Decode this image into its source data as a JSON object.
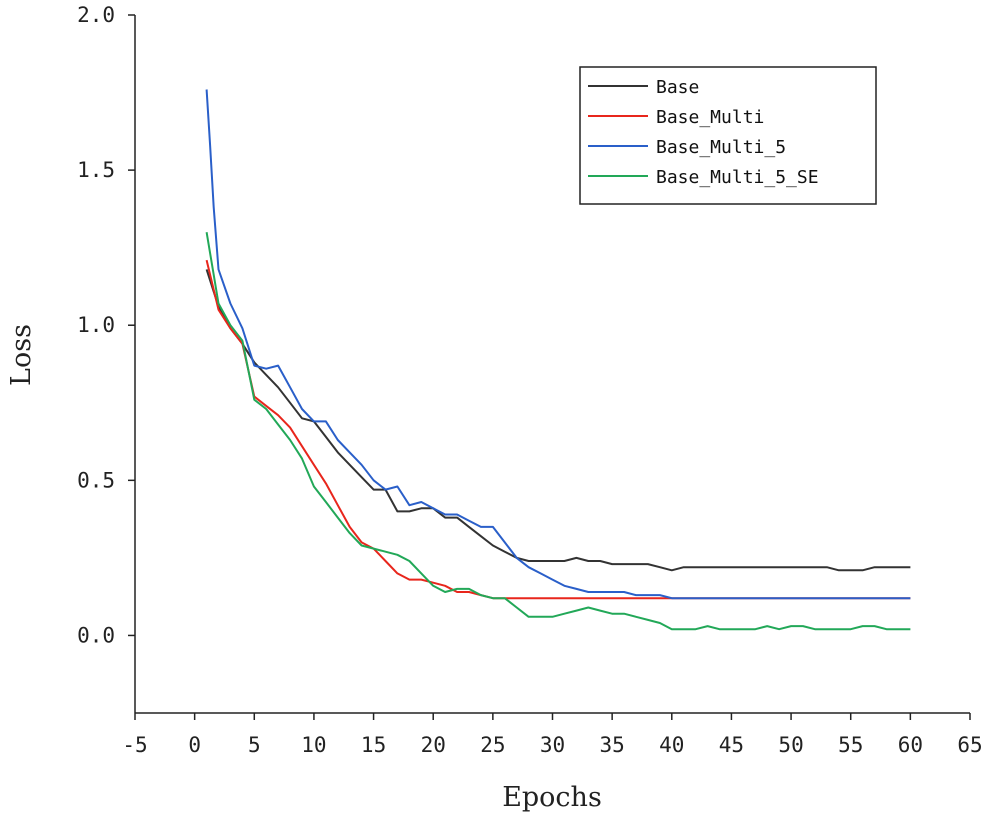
{
  "chart_data": {
    "type": "line",
    "title": "",
    "xlabel": "Epochs",
    "ylabel": "Loss",
    "xlim": [
      -5,
      65
    ],
    "ylim": [
      -0.25,
      2.0
    ],
    "xticks": [
      -5,
      0,
      5,
      10,
      15,
      20,
      25,
      30,
      35,
      40,
      45,
      50,
      55,
      60,
      65
    ],
    "yticks": [
      0.0,
      0.5,
      1.0,
      1.5,
      2.0
    ],
    "xtick_labels": [
      "-5",
      "0",
      "5",
      "10",
      "15",
      "20",
      "25",
      "30",
      "35",
      "40",
      "45",
      "50",
      "55",
      "60",
      "65"
    ],
    "ytick_labels": [
      "0.0",
      "0.5",
      "1.0",
      "1.5",
      "2.0"
    ],
    "grid": false,
    "legend_position": "top-right",
    "series": [
      {
        "name": "Base",
        "color": "#333333",
        "x": [
          1,
          2,
          3,
          4,
          5,
          6,
          7,
          8,
          9,
          10,
          11,
          12,
          13,
          14,
          15,
          16,
          17,
          18,
          19,
          20,
          21,
          22,
          23,
          24,
          25,
          26,
          27,
          28,
          29,
          30,
          31,
          32,
          33,
          34,
          35,
          36,
          37,
          38,
          39,
          40,
          41,
          42,
          43,
          44,
          45,
          46,
          47,
          48,
          49,
          50,
          51,
          52,
          53,
          54,
          55,
          56,
          57,
          58,
          59,
          60
        ],
        "values": [
          1.18,
          1.06,
          0.99,
          0.94,
          0.88,
          0.84,
          0.8,
          0.75,
          0.7,
          0.69,
          0.64,
          0.59,
          0.55,
          0.51,
          0.47,
          0.47,
          0.4,
          0.4,
          0.41,
          0.41,
          0.38,
          0.38,
          0.35,
          0.32,
          0.29,
          0.27,
          0.25,
          0.24,
          0.24,
          0.24,
          0.24,
          0.25,
          0.24,
          0.24,
          0.23,
          0.23,
          0.23,
          0.23,
          0.22,
          0.21,
          0.22,
          0.22,
          0.22,
          0.22,
          0.22,
          0.22,
          0.22,
          0.22,
          0.22,
          0.22,
          0.22,
          0.22,
          0.22,
          0.21,
          0.21,
          0.21,
          0.22,
          0.22,
          0.22,
          0.22
        ]
      },
      {
        "name": "Base_Multi",
        "color": "#e8261c",
        "x": [
          1,
          2,
          3,
          4,
          5,
          6,
          7,
          8,
          9,
          10,
          11,
          12,
          13,
          14,
          15,
          16,
          17,
          18,
          19,
          20,
          21,
          22,
          23,
          24,
          25,
          26,
          27,
          28,
          29,
          30,
          31,
          32,
          33,
          34,
          35,
          36,
          37,
          38,
          39,
          40,
          41,
          42,
          43,
          44,
          45,
          46,
          47,
          48,
          49,
          50,
          51,
          52,
          53,
          54,
          55,
          56,
          57,
          58,
          59,
          60
        ],
        "values": [
          1.21,
          1.05,
          0.99,
          0.94,
          0.77,
          0.74,
          0.71,
          0.67,
          0.61,
          0.55,
          0.49,
          0.42,
          0.35,
          0.3,
          0.28,
          0.24,
          0.2,
          0.18,
          0.18,
          0.17,
          0.16,
          0.14,
          0.14,
          0.13,
          0.12,
          0.12,
          0.12,
          0.12,
          0.12,
          0.12,
          0.12,
          0.12,
          0.12,
          0.12,
          0.12,
          0.12,
          0.12,
          0.12,
          0.12,
          0.12,
          0.12,
          0.12,
          0.12,
          0.12,
          0.12,
          0.12,
          0.12,
          0.12,
          0.12,
          0.12,
          0.12,
          0.12,
          0.12,
          0.12,
          0.12,
          0.12,
          0.12,
          0.12,
          0.12,
          0.12
        ]
      },
      {
        "name": "Base_Multi_5",
        "color": "#2a5fc9",
        "x": [
          1,
          1.3,
          1.6,
          2,
          3,
          4,
          5,
          6,
          7,
          8,
          9,
          10,
          11,
          12,
          13,
          14,
          15,
          16,
          17,
          18,
          19,
          20,
          21,
          22,
          23,
          24,
          25,
          26,
          27,
          28,
          29,
          30,
          31,
          32,
          33,
          34,
          35,
          36,
          37,
          38,
          39,
          40,
          41,
          42,
          43,
          44,
          45,
          46,
          47,
          48,
          49,
          50,
          51,
          52,
          53,
          54,
          55,
          56,
          57,
          58,
          59,
          60
        ],
        "values": [
          1.76,
          1.58,
          1.38,
          1.18,
          1.07,
          0.99,
          0.87,
          0.86,
          0.87,
          0.8,
          0.73,
          0.69,
          0.69,
          0.63,
          0.59,
          0.55,
          0.5,
          0.47,
          0.48,
          0.42,
          0.43,
          0.41,
          0.39,
          0.39,
          0.37,
          0.35,
          0.35,
          0.3,
          0.25,
          0.22,
          0.2,
          0.18,
          0.16,
          0.15,
          0.14,
          0.14,
          0.14,
          0.14,
          0.13,
          0.13,
          0.13,
          0.12,
          0.12,
          0.12,
          0.12,
          0.12,
          0.12,
          0.12,
          0.12,
          0.12,
          0.12,
          0.12,
          0.12,
          0.12,
          0.12,
          0.12,
          0.12,
          0.12,
          0.12,
          0.12,
          0.12,
          0.12
        ]
      },
      {
        "name": "Base_Multi_5_SE",
        "color": "#22a858",
        "x": [
          1,
          2,
          3,
          4,
          5,
          6,
          7,
          8,
          9,
          10,
          11,
          12,
          13,
          14,
          15,
          16,
          17,
          18,
          19,
          20,
          21,
          22,
          23,
          24,
          25,
          26,
          27,
          28,
          29,
          30,
          31,
          32,
          33,
          34,
          35,
          36,
          37,
          38,
          39,
          40,
          41,
          42,
          43,
          44,
          45,
          46,
          47,
          48,
          49,
          50,
          51,
          52,
          53,
          54,
          55,
          56,
          57,
          58,
          59,
          60
        ],
        "values": [
          1.3,
          1.07,
          1.0,
          0.95,
          0.76,
          0.73,
          0.68,
          0.63,
          0.57,
          0.48,
          0.43,
          0.38,
          0.33,
          0.29,
          0.28,
          0.27,
          0.26,
          0.24,
          0.2,
          0.16,
          0.14,
          0.15,
          0.15,
          0.13,
          0.12,
          0.12,
          0.09,
          0.06,
          0.06,
          0.06,
          0.07,
          0.08,
          0.09,
          0.08,
          0.07,
          0.07,
          0.06,
          0.05,
          0.04,
          0.02,
          0.02,
          0.02,
          0.03,
          0.02,
          0.02,
          0.02,
          0.02,
          0.03,
          0.02,
          0.03,
          0.03,
          0.02,
          0.02,
          0.02,
          0.02,
          0.03,
          0.03,
          0.02,
          0.02,
          0.02
        ]
      }
    ]
  }
}
